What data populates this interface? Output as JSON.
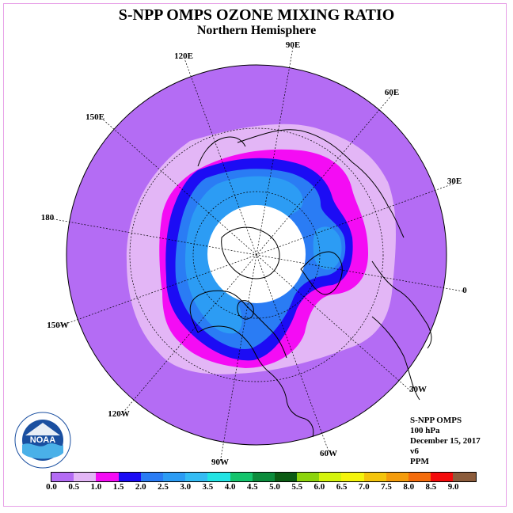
{
  "title": "S-NPP OMPS OZONE MIXING RATIO",
  "subtitle": "Northern Hemisphere",
  "longitude_labels": {
    "lon_90e": "90E",
    "lon_60e": "60E",
    "lon_30e": "30E",
    "lon_0": "0",
    "lon_30w": "30W",
    "lon_60w": "60W",
    "lon_90w": "90W",
    "lon_120w": "120W",
    "lon_150w": "150W",
    "lon_180": "180",
    "lon_150e": "150E",
    "lon_120e": "120E"
  },
  "info": {
    "instrument": "S-NPP OMPS",
    "level": "100 hPa",
    "date": "December 15, 2017",
    "version": "v6",
    "units": "PPM"
  },
  "logo_text": "NOAA",
  "colorbar": {
    "ticks": [
      "0.0",
      "0.5",
      "1.0",
      "1.5",
      "2.0",
      "2.5",
      "3.0",
      "3.5",
      "4.0",
      "4.5",
      "5.0",
      "5.5",
      "6.0",
      "6.5",
      "7.0",
      "7.5",
      "8.0",
      "8.5",
      "9.0"
    ],
    "colors": [
      "#b46cf4",
      "#e3b6f6",
      "#f40cf4",
      "#1c0cf4",
      "#2a7cf4",
      "#2c9cf4",
      "#34bcf4",
      "#22e4e4",
      "#14c46c",
      "#0c8c3c",
      "#0c5c14",
      "#8cd40c",
      "#d4f40c",
      "#f4f40c",
      "#f4c40c",
      "#f49c0c",
      "#f46c0c",
      "#f40c0c",
      "#8c5c3c"
    ]
  },
  "map_colors": {
    "background": "#b46cf4",
    "band_0_5_1_0": "#e3b6f6",
    "band_1_0_1_5": "#f40cf4",
    "band_1_5_2_0": "#1c0cf4",
    "band_2_0_2_5": "#2a7cf4",
    "band_2_5_3_0": "#2c9cf4",
    "no_data": "#ffffff"
  }
}
